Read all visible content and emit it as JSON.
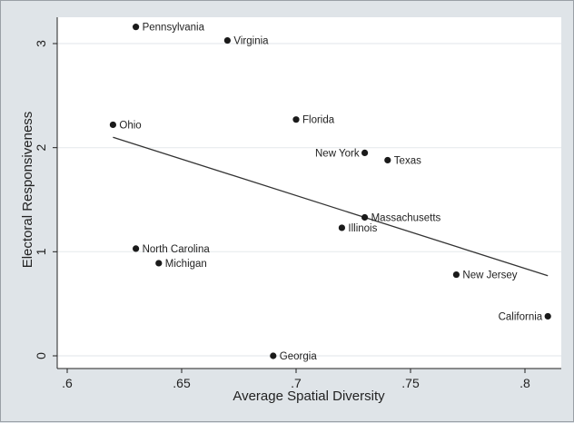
{
  "chart_data": {
    "type": "scatter",
    "xlabel": "Average Spatial Diversity",
    "ylabel": "Electoral Responsiveness",
    "xlim": [
      0.6,
      0.81
    ],
    "ylim": [
      -0.05,
      3.25
    ],
    "x_ticks": [
      0.6,
      0.65,
      0.7,
      0.75,
      0.8
    ],
    "x_tick_labels": [
      ".6",
      ".65",
      ".7",
      ".75",
      ".8"
    ],
    "y_ticks": [
      0,
      1,
      2,
      3
    ],
    "y_tick_labels": [
      "0",
      "1",
      "2",
      "3"
    ],
    "grid": true,
    "points": [
      {
        "label": "Pennsylvania",
        "x": 0.63,
        "y": 3.16,
        "label_side": "right"
      },
      {
        "label": "Virginia",
        "x": 0.67,
        "y": 3.03,
        "label_side": "right"
      },
      {
        "label": "Ohio",
        "x": 0.62,
        "y": 2.22,
        "label_side": "right"
      },
      {
        "label": "Florida",
        "x": 0.7,
        "y": 2.27,
        "label_side": "right"
      },
      {
        "label": "New York",
        "x": 0.73,
        "y": 1.95,
        "label_side": "left"
      },
      {
        "label": "Texas",
        "x": 0.74,
        "y": 1.88,
        "label_side": "right"
      },
      {
        "label": "Massachusetts",
        "x": 0.73,
        "y": 1.33,
        "label_side": "right"
      },
      {
        "label": "Illinois",
        "x": 0.72,
        "y": 1.23,
        "label_side": "right"
      },
      {
        "label": "North Carolina",
        "x": 0.63,
        "y": 1.03,
        "label_side": "right"
      },
      {
        "label": "Michigan",
        "x": 0.64,
        "y": 0.89,
        "label_side": "right"
      },
      {
        "label": "New Jersey",
        "x": 0.77,
        "y": 0.78,
        "label_side": "right"
      },
      {
        "label": "California",
        "x": 0.81,
        "y": 0.38,
        "label_side": "left"
      },
      {
        "label": "Georgia",
        "x": 0.69,
        "y": 0.0,
        "label_side": "right"
      }
    ],
    "fit_line": {
      "x": [
        0.62,
        0.81
      ],
      "y": [
        2.1,
        0.77
      ]
    },
    "colors": {
      "background": "#dfe4e8",
      "plot_background": "#ffffff",
      "grid": "#e8ebee",
      "marker": "#1a1a1a",
      "line": "#333333"
    }
  }
}
